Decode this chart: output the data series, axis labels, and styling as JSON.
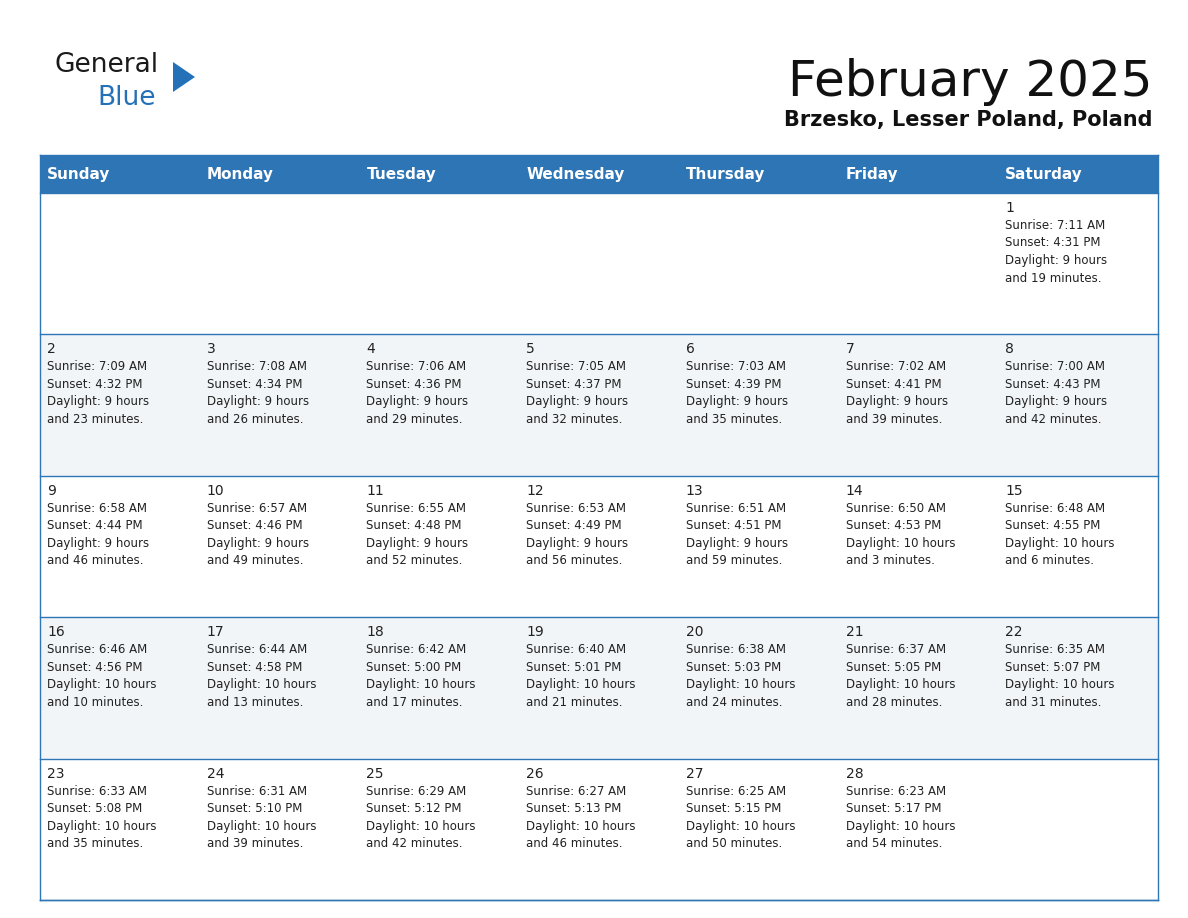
{
  "title": "February 2025",
  "subtitle": "Brzesko, Lesser Poland, Poland",
  "header_bg": "#2E75B6",
  "header_text_color": "#FFFFFF",
  "day_headers": [
    "Sunday",
    "Monday",
    "Tuesday",
    "Wednesday",
    "Thursday",
    "Friday",
    "Saturday"
  ],
  "bg_color": "#FFFFFF",
  "row_bg_white": "#FFFFFF",
  "row_bg_gray": "#F2F5F8",
  "grid_line_color": "#2E75B6",
  "day_number_color": "#222222",
  "info_text_color": "#222222",
  "calendar_data": [
    [
      {
        "day": null,
        "info": ""
      },
      {
        "day": null,
        "info": ""
      },
      {
        "day": null,
        "info": ""
      },
      {
        "day": null,
        "info": ""
      },
      {
        "day": null,
        "info": ""
      },
      {
        "day": null,
        "info": ""
      },
      {
        "day": 1,
        "info": "Sunrise: 7:11 AM\nSunset: 4:31 PM\nDaylight: 9 hours\nand 19 minutes."
      }
    ],
    [
      {
        "day": 2,
        "info": "Sunrise: 7:09 AM\nSunset: 4:32 PM\nDaylight: 9 hours\nand 23 minutes."
      },
      {
        "day": 3,
        "info": "Sunrise: 7:08 AM\nSunset: 4:34 PM\nDaylight: 9 hours\nand 26 minutes."
      },
      {
        "day": 4,
        "info": "Sunrise: 7:06 AM\nSunset: 4:36 PM\nDaylight: 9 hours\nand 29 minutes."
      },
      {
        "day": 5,
        "info": "Sunrise: 7:05 AM\nSunset: 4:37 PM\nDaylight: 9 hours\nand 32 minutes."
      },
      {
        "day": 6,
        "info": "Sunrise: 7:03 AM\nSunset: 4:39 PM\nDaylight: 9 hours\nand 35 minutes."
      },
      {
        "day": 7,
        "info": "Sunrise: 7:02 AM\nSunset: 4:41 PM\nDaylight: 9 hours\nand 39 minutes."
      },
      {
        "day": 8,
        "info": "Sunrise: 7:00 AM\nSunset: 4:43 PM\nDaylight: 9 hours\nand 42 minutes."
      }
    ],
    [
      {
        "day": 9,
        "info": "Sunrise: 6:58 AM\nSunset: 4:44 PM\nDaylight: 9 hours\nand 46 minutes."
      },
      {
        "day": 10,
        "info": "Sunrise: 6:57 AM\nSunset: 4:46 PM\nDaylight: 9 hours\nand 49 minutes."
      },
      {
        "day": 11,
        "info": "Sunrise: 6:55 AM\nSunset: 4:48 PM\nDaylight: 9 hours\nand 52 minutes."
      },
      {
        "day": 12,
        "info": "Sunrise: 6:53 AM\nSunset: 4:49 PM\nDaylight: 9 hours\nand 56 minutes."
      },
      {
        "day": 13,
        "info": "Sunrise: 6:51 AM\nSunset: 4:51 PM\nDaylight: 9 hours\nand 59 minutes."
      },
      {
        "day": 14,
        "info": "Sunrise: 6:50 AM\nSunset: 4:53 PM\nDaylight: 10 hours\nand 3 minutes."
      },
      {
        "day": 15,
        "info": "Sunrise: 6:48 AM\nSunset: 4:55 PM\nDaylight: 10 hours\nand 6 minutes."
      }
    ],
    [
      {
        "day": 16,
        "info": "Sunrise: 6:46 AM\nSunset: 4:56 PM\nDaylight: 10 hours\nand 10 minutes."
      },
      {
        "day": 17,
        "info": "Sunrise: 6:44 AM\nSunset: 4:58 PM\nDaylight: 10 hours\nand 13 minutes."
      },
      {
        "day": 18,
        "info": "Sunrise: 6:42 AM\nSunset: 5:00 PM\nDaylight: 10 hours\nand 17 minutes."
      },
      {
        "day": 19,
        "info": "Sunrise: 6:40 AM\nSunset: 5:01 PM\nDaylight: 10 hours\nand 21 minutes."
      },
      {
        "day": 20,
        "info": "Sunrise: 6:38 AM\nSunset: 5:03 PM\nDaylight: 10 hours\nand 24 minutes."
      },
      {
        "day": 21,
        "info": "Sunrise: 6:37 AM\nSunset: 5:05 PM\nDaylight: 10 hours\nand 28 minutes."
      },
      {
        "day": 22,
        "info": "Sunrise: 6:35 AM\nSunset: 5:07 PM\nDaylight: 10 hours\nand 31 minutes."
      }
    ],
    [
      {
        "day": 23,
        "info": "Sunrise: 6:33 AM\nSunset: 5:08 PM\nDaylight: 10 hours\nand 35 minutes."
      },
      {
        "day": 24,
        "info": "Sunrise: 6:31 AM\nSunset: 5:10 PM\nDaylight: 10 hours\nand 39 minutes."
      },
      {
        "day": 25,
        "info": "Sunrise: 6:29 AM\nSunset: 5:12 PM\nDaylight: 10 hours\nand 42 minutes."
      },
      {
        "day": 26,
        "info": "Sunrise: 6:27 AM\nSunset: 5:13 PM\nDaylight: 10 hours\nand 46 minutes."
      },
      {
        "day": 27,
        "info": "Sunrise: 6:25 AM\nSunset: 5:15 PM\nDaylight: 10 hours\nand 50 minutes."
      },
      {
        "day": 28,
        "info": "Sunrise: 6:23 AM\nSunset: 5:17 PM\nDaylight: 10 hours\nand 54 minutes."
      },
      {
        "day": null,
        "info": ""
      }
    ]
  ],
  "logo_general_color": "#1a1a1a",
  "logo_blue_color": "#2471B8",
  "logo_triangle_color": "#2471B8",
  "title_fontsize": 36,
  "subtitle_fontsize": 15,
  "header_fontsize": 11,
  "day_num_fontsize": 10,
  "info_fontsize": 8.5
}
